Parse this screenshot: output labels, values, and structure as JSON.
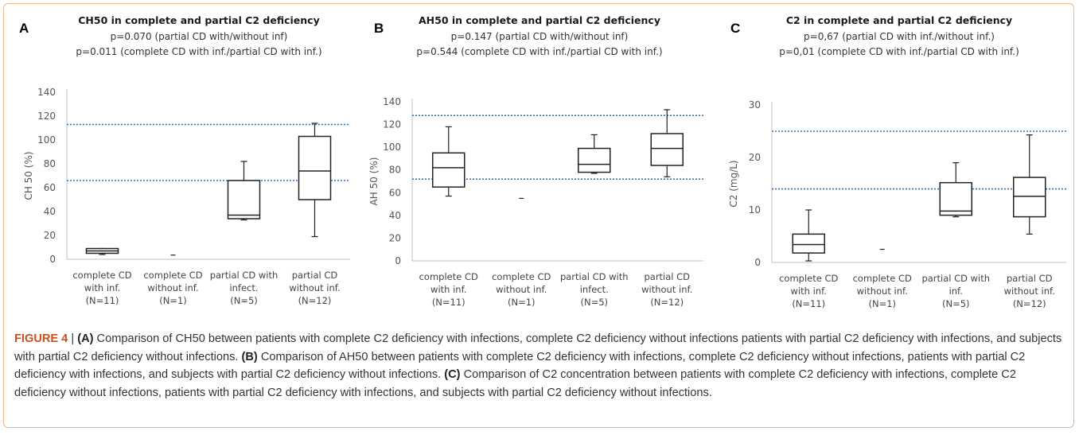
{
  "chart_data": [
    {
      "panel": "A",
      "type": "box",
      "title": "CH50 in complete and partial C2 deficiency",
      "subtitle_lines": [
        "p=0.070 (partial CD with/without inf)",
        "p=0.011 (complete CD with inf./partial CD with inf.)"
      ],
      "ylabel": "CH 50 (%)",
      "ylim": [
        0,
        140
      ],
      "yticks": [
        0,
        20,
        40,
        60,
        80,
        100,
        120,
        140
      ],
      "reference_lines": [
        66,
        113
      ],
      "categories": [
        [
          "complete CD",
          "with inf.",
          "(N=11)"
        ],
        [
          "complete CD",
          "without inf.",
          "(N=1)"
        ],
        [
          "partial CD with",
          "infect.",
          "(N=5)"
        ],
        [
          "partial CD",
          "without inf.",
          "(N=12)"
        ]
      ],
      "boxes": [
        {
          "min": 4,
          "q1": 5,
          "median": 7,
          "q3": 9,
          "max": 9
        },
        {
          "single": 3.5
        },
        {
          "min": 33,
          "q1": 34,
          "median": 37,
          "q3": 66,
          "max": 82
        },
        {
          "min": 19,
          "q1": 50,
          "median": 74,
          "q3": 103,
          "max": 114
        }
      ]
    },
    {
      "panel": "B",
      "type": "box",
      "title": "AH50 in complete and partial C2 deficiency",
      "subtitle_lines": [
        "p=0.147 (partial CD with/without inf)",
        "p=0.544 (complete CD with inf./partial CD with inf.)"
      ],
      "ylabel": "AH 50 (%)",
      "ylim": [
        0,
        140
      ],
      "yticks": [
        0,
        20,
        40,
        60,
        80,
        100,
        120,
        140
      ],
      "reference_lines": [
        72,
        128
      ],
      "categories": [
        [
          "complete CD",
          "with inf.",
          "(N=11)"
        ],
        [
          "complete CD",
          "without inf.",
          "(N=1)"
        ],
        [
          "partial CD with",
          "infect.",
          "(N=5)"
        ],
        [
          "partial CD",
          "without inf.",
          "(N=12)"
        ]
      ],
      "boxes": [
        {
          "min": 57,
          "q1": 65,
          "median": 82,
          "q3": 95,
          "max": 118
        },
        {
          "single": 55
        },
        {
          "min": 77,
          "q1": 78,
          "median": 85,
          "q3": 99,
          "max": 111
        },
        {
          "min": 74,
          "q1": 84,
          "median": 99,
          "q3": 112,
          "max": 133
        }
      ]
    },
    {
      "panel": "C",
      "type": "box",
      "title": "C2 in complete and partial C2 deficiency",
      "subtitle_lines": [
        "p=0,67 (partial CD with inf./without inf.)",
        "p=0,01 (complete CD with inf./partial CD with inf.)"
      ],
      "ylabel": "C2 (mg/L)",
      "ylim": [
        0,
        30
      ],
      "yticks": [
        0,
        10,
        20,
        30
      ],
      "reference_lines": [
        14,
        25
      ],
      "categories": [
        [
          "complete CD",
          "with inf.",
          "(N=11)"
        ],
        [
          "complete CD",
          "without inf.",
          "(N=1)"
        ],
        [
          "partial CD with",
          "inf.",
          "(N=5)"
        ],
        [
          "partial CD",
          "without inf.",
          "(N=12)"
        ]
      ],
      "boxes": [
        {
          "min": 0.3,
          "q1": 1.8,
          "median": 3.4,
          "q3": 5.4,
          "max": 10
        },
        {
          "single": 2.5
        },
        {
          "min": 8.7,
          "q1": 9,
          "median": 9.8,
          "q3": 15.2,
          "max": 19
        },
        {
          "min": 5.4,
          "q1": 8.7,
          "median": 12.6,
          "q3": 16.2,
          "max": 24.3
        }
      ]
    }
  ],
  "caption": {
    "figure_label": "FIGURE 4",
    "separator": " | ",
    "parts": [
      {
        "label": "(A)",
        "text": " Comparison of CH50 between patients with complete C2 deficiency with infections, complete C2 deficiency without infections patients with partial C2 deficiency with infections, and subjects with partial C2 deficiency without infections. "
      },
      {
        "label": "(B)",
        "text": " Comparison of AH50 between patients with complete C2 deficiency with infections, complete C2 deficiency without infections, patients with partial C2 deficiency with infections, and subjects with partial C2 deficiency without infections. "
      },
      {
        "label": "(C)",
        "text": " Comparison of C2 concentration between patients with complete C2 deficiency with infections, complete C2 deficiency without infections, patients with partial C2 deficiency with infections, and subjects with partial C2 deficiency without infections."
      }
    ]
  },
  "colors": {
    "reference_line": "#2e75b6",
    "box_stroke": "#222222",
    "axis": "#bfbfbf",
    "frame": "#f0b48f"
  }
}
